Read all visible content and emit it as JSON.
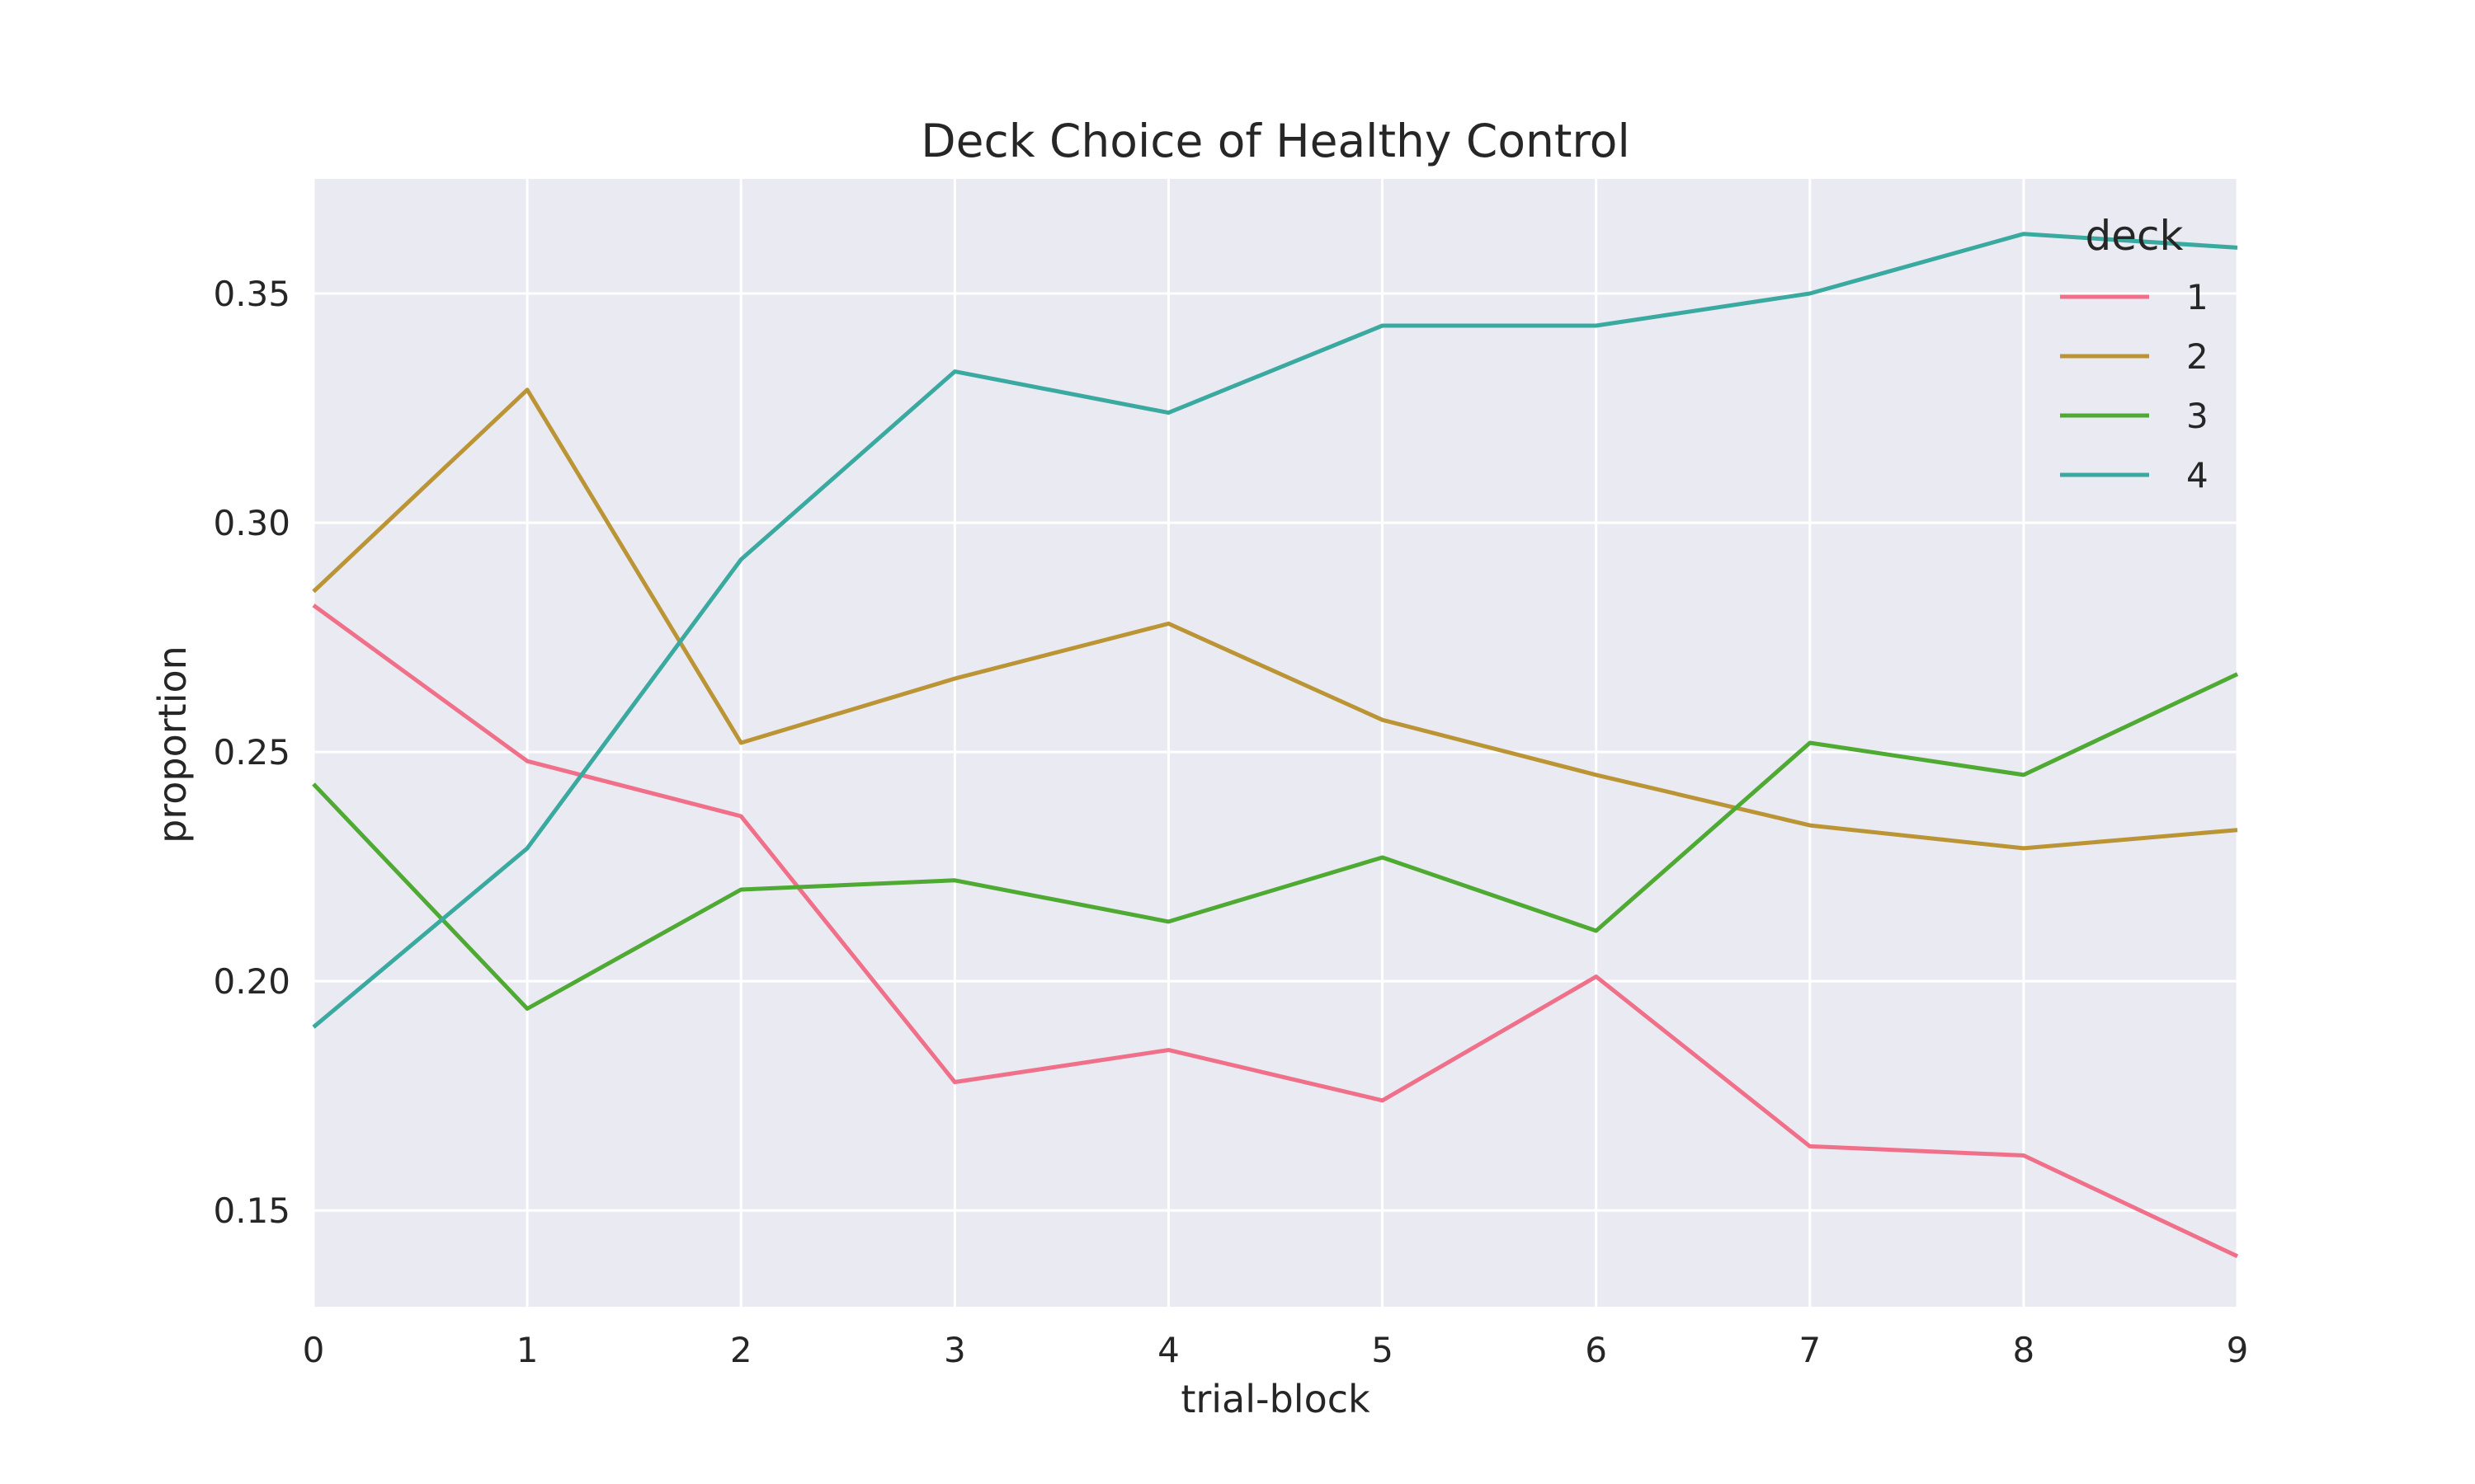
{
  "chart_data": {
    "type": "line",
    "title": "Deck Choice of Healthy Control",
    "xlabel": "trial-block",
    "ylabel": "proportion",
    "x": [
      0,
      1,
      2,
      3,
      4,
      5,
      6,
      7,
      8,
      9
    ],
    "xlim": [
      0,
      9
    ],
    "ylim": [
      0.129,
      0.375
    ],
    "xticks": [
      "0",
      "1",
      "2",
      "3",
      "4",
      "5",
      "6",
      "7",
      "8",
      "9"
    ],
    "yticks": [
      0.15,
      0.2,
      0.25,
      0.3,
      0.35
    ],
    "ytick_labels": [
      "0.15",
      "0.20",
      "0.25",
      "0.30",
      "0.35"
    ],
    "grid": true,
    "legend": {
      "title": "deck",
      "placement": "top-right"
    },
    "series": [
      {
        "name": "1",
        "color": "#f0708a",
        "values": [
          0.282,
          0.248,
          0.236,
          0.178,
          0.185,
          0.174,
          0.201,
          0.164,
          0.162,
          0.14
        ]
      },
      {
        "name": "2",
        "color": "#bb9535",
        "values": [
          0.285,
          0.329,
          0.252,
          0.266,
          0.278,
          0.257,
          0.245,
          0.234,
          0.229,
          0.233
        ]
      },
      {
        "name": "3",
        "color": "#4eaa32",
        "values": [
          0.243,
          0.194,
          0.22,
          0.222,
          0.213,
          0.227,
          0.211,
          0.252,
          0.245,
          0.267
        ]
      },
      {
        "name": "4",
        "color": "#3aaaa0",
        "values": [
          0.19,
          0.229,
          0.292,
          0.333,
          0.324,
          0.343,
          0.343,
          0.35,
          0.363,
          0.36
        ]
      }
    ],
    "background_color": "#eaeaf2",
    "grid_color": "#ffffff"
  }
}
